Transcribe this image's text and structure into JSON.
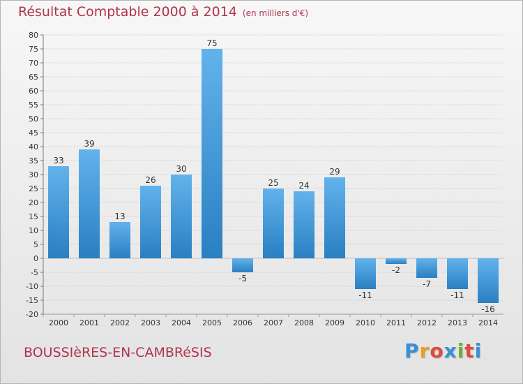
{
  "header": {
    "title": "Résultat Comptable 2000 à 2014",
    "subtitle": "(en milliers d'€)"
  },
  "footer": {
    "commune": "BOUSSIèRES-EN-CAMBRéSIS",
    "logo_letters": [
      "P",
      "r",
      "o",
      "x",
      "i",
      "t",
      "i"
    ],
    "logo_colors": [
      "#3a8fd6",
      "#e8a020",
      "#e04a3a",
      "#3a8fd6",
      "#63b33a",
      "#e04a3a",
      "#3a8fd6"
    ]
  },
  "colors": {
    "bar_light": "#62b3ec",
    "bar_dark": "#2a7fc2",
    "grid": "#cfcfcf",
    "title": "#b2334f"
  },
  "chart_data": {
    "type": "bar",
    "title": "Résultat Comptable 2000 à 2014",
    "subtitle": "(en milliers d'€)",
    "categories": [
      "2000",
      "2001",
      "2002",
      "2003",
      "2004",
      "2005",
      "2006",
      "2007",
      "2008",
      "2009",
      "2010",
      "2011",
      "2012",
      "2013",
      "2014"
    ],
    "values": [
      33,
      39,
      13,
      26,
      30,
      75,
      -5,
      25,
      24,
      29,
      -11,
      -2,
      -7,
      -11,
      -16
    ],
    "ylim": [
      -20,
      80
    ],
    "ytick_step": 5,
    "grid": true
  }
}
